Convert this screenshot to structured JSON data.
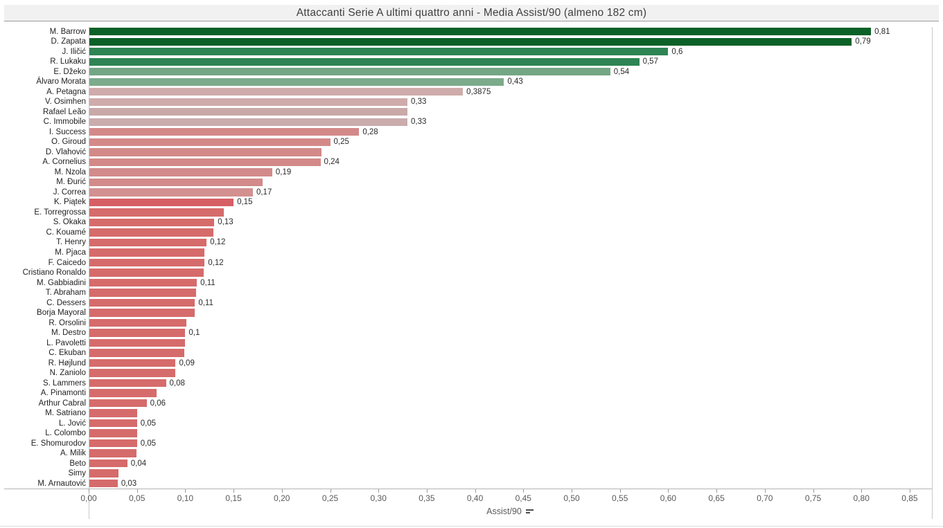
{
  "title": "Attaccanti Serie A ultimi quattro anni - Media Assist/90 (almeno 182 cm)",
  "chart_data": {
    "type": "bar",
    "orientation": "horizontal",
    "title": "Attaccanti Serie A ultimi quattro anni - Media Assist/90 (almeno 182 cm)",
    "xlabel": "Assist/90",
    "ylabel": "",
    "xlim": [
      0,
      0.85
    ],
    "x_tick_step": 0.05,
    "x_ticks": [
      "0,00",
      "0,05",
      "0,10",
      "0,15",
      "0,20",
      "0,25",
      "0,30",
      "0,35",
      "0,40",
      "0,45",
      "0,50",
      "0,55",
      "0,60",
      "0,65",
      "0,70",
      "0,75",
      "0,80",
      "0,85"
    ],
    "grid": false,
    "legend": "none",
    "value_format": "comma-decimal",
    "players": [
      {
        "name": "M. Barrow",
        "value": 0.81,
        "label": "0,81",
        "color": "#0b6127"
      },
      {
        "name": "D. Zapata",
        "value": 0.79,
        "label": "0,79",
        "color": "#0b6127"
      },
      {
        "name": "J. Iličić",
        "value": 0.6,
        "label": "0,6",
        "color": "#2f8453"
      },
      {
        "name": "R. Lukaku",
        "value": 0.57,
        "label": "0,57",
        "color": "#2f8453"
      },
      {
        "name": "E. Džeko",
        "value": 0.54,
        "label": "0,54",
        "color": "#74a685"
      },
      {
        "name": "Álvaro Morata",
        "value": 0.43,
        "label": "0,43",
        "color": "#7bab8b"
      },
      {
        "name": "A. Petagna",
        "value": 0.3875,
        "label": "0,3875",
        "color": "#cfabab"
      },
      {
        "name": "V. Osimhen",
        "value": 0.33,
        "label": "0,33",
        "color": "#cfabab"
      },
      {
        "name": "Rafael Leão",
        "value": 0.33,
        "label": "",
        "color": "#c9a8a8"
      },
      {
        "name": "C. Immobile",
        "value": 0.33,
        "label": "0,33",
        "color": "#caacac"
      },
      {
        "name": "I. Success",
        "value": 0.28,
        "label": "0,28",
        "color": "#d48989"
      },
      {
        "name": "O. Giroud",
        "value": 0.25,
        "label": "0,25",
        "color": "#d48989"
      },
      {
        "name": "D. Vlahović",
        "value": 0.241,
        "label": "",
        "color": "#d48989"
      },
      {
        "name": "A. Cornelius",
        "value": 0.24,
        "label": "0,24",
        "color": "#d48989"
      },
      {
        "name": "M. Nzola",
        "value": 0.19,
        "label": "0,19",
        "color": "#d28a8a"
      },
      {
        "name": "M. Đurić",
        "value": 0.18,
        "label": "",
        "color": "#d28a8a"
      },
      {
        "name": "J. Correa",
        "value": 0.17,
        "label": "0,17",
        "color": "#d39090"
      },
      {
        "name": "K. Piątek",
        "value": 0.15,
        "label": "0,15",
        "color": "#d65f64"
      },
      {
        "name": "E. Torregrossa",
        "value": 0.14,
        "label": "",
        "color": "#d66b6b"
      },
      {
        "name": "S. Okaka",
        "value": 0.13,
        "label": "0,13",
        "color": "#d66b6b"
      },
      {
        "name": "C. Kouamé",
        "value": 0.129,
        "label": "",
        "color": "#d66b6b"
      },
      {
        "name": "T. Henry",
        "value": 0.122,
        "label": "0,12",
        "color": "#d66b6b"
      },
      {
        "name": "M. Pjaca",
        "value": 0.12,
        "label": "",
        "color": "#d66b6b"
      },
      {
        "name": "F. Caicedo",
        "value": 0.12,
        "label": "0,12",
        "color": "#d66b6b"
      },
      {
        "name": "Cristiano Ronaldo",
        "value": 0.119,
        "label": "",
        "color": "#d66b6b"
      },
      {
        "name": "M. Gabbiadini",
        "value": 0.112,
        "label": "0,11",
        "color": "#d66b6b"
      },
      {
        "name": "T. Abraham",
        "value": 0.111,
        "label": "",
        "color": "#d66b6b"
      },
      {
        "name": "C. Dessers",
        "value": 0.11,
        "label": "0,11",
        "color": "#d66b6b"
      },
      {
        "name": "Borja Mayoral",
        "value": 0.11,
        "label": "",
        "color": "#d66b6b"
      },
      {
        "name": "R. Orsolini",
        "value": 0.101,
        "label": "",
        "color": "#d66b6b"
      },
      {
        "name": "M. Destro",
        "value": 0.1,
        "label": "0,1",
        "color": "#d66b6b"
      },
      {
        "name": "L. Pavoletti",
        "value": 0.0995,
        "label": "",
        "color": "#d66b6b"
      },
      {
        "name": "C. Ekuban",
        "value": 0.099,
        "label": "",
        "color": "#d66b6b"
      },
      {
        "name": "R. Højlund",
        "value": 0.09,
        "label": "0,09",
        "color": "#d66b6b"
      },
      {
        "name": "N. Zaniolo",
        "value": 0.09,
        "label": "",
        "color": "#d66b6b"
      },
      {
        "name": "S. Lammers",
        "value": 0.08,
        "label": "0,08",
        "color": "#d66b6b"
      },
      {
        "name": "A. Pinamonti",
        "value": 0.07,
        "label": "",
        "color": "#d66b6b"
      },
      {
        "name": "Arthur Cabral",
        "value": 0.06,
        "label": "0,06",
        "color": "#d66b6b"
      },
      {
        "name": "M. Satriano",
        "value": 0.0505,
        "label": "",
        "color": "#d66b6b"
      },
      {
        "name": "L. Jović",
        "value": 0.05,
        "label": "0,05",
        "color": "#d66b6b"
      },
      {
        "name": "L. Colombo",
        "value": 0.05,
        "label": "",
        "color": "#d66b6b"
      },
      {
        "name": "E. Shomurodov",
        "value": 0.05,
        "label": "0,05",
        "color": "#d66b6b"
      },
      {
        "name": "A. Milik",
        "value": 0.0495,
        "label": "",
        "color": "#d66b6b"
      },
      {
        "name": "Beto",
        "value": 0.04,
        "label": "0,04",
        "color": "#d66b6b"
      },
      {
        "name": "Simy",
        "value": 0.0305,
        "label": "",
        "color": "#d66b6b"
      },
      {
        "name": "M. Arnautović",
        "value": 0.03,
        "label": "0,03",
        "color": "#d66b6b"
      }
    ]
  },
  "icons": {
    "sort_icon": "sort-descending-icon"
  }
}
